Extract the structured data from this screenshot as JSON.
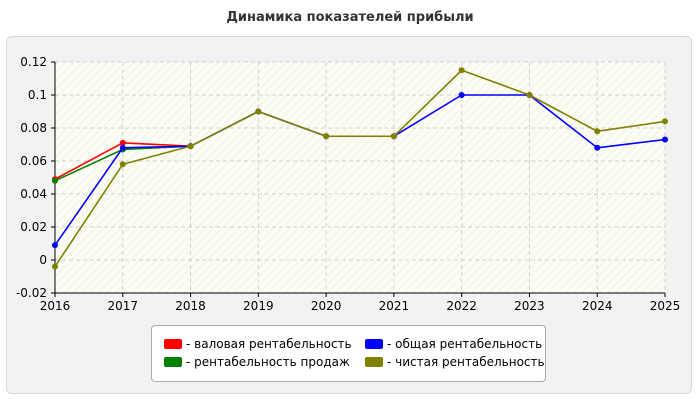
{
  "chart_data": {
    "type": "line",
    "title": "Динамика показателей прибыли",
    "x": [
      "2016",
      "2017",
      "2018",
      "2019",
      "2020",
      "2021",
      "2022",
      "2023",
      "2024",
      "2025"
    ],
    "ylim": [
      -0.02,
      0.12
    ],
    "yticks": [
      "-0.02",
      "0",
      "0.02",
      "0.04",
      "0.06",
      "0.08",
      "0.1",
      "0.12"
    ],
    "grid": true,
    "legend_position": "bottom",
    "series": [
      {
        "name": "- валовая рентабельность",
        "color": "#ff0000",
        "values": [
          0.049,
          0.071,
          0.069,
          null,
          null,
          null,
          null,
          null,
          null,
          null
        ]
      },
      {
        "name": "- рентабельность продаж",
        "color": "#008000",
        "values": [
          0.048,
          0.067,
          0.069,
          null,
          null,
          null,
          null,
          null,
          null,
          null
        ]
      },
      {
        "name": "- общая рентабельность",
        "color": "#0000ff",
        "values": [
          0.009,
          0.068,
          0.069,
          0.09,
          0.075,
          0.075,
          0.1,
          0.1,
          0.068,
          0.073
        ]
      },
      {
        "name": "- чистая рентабельность",
        "color": "#808000",
        "values": [
          -0.004,
          0.058,
          0.069,
          0.09,
          0.075,
          0.075,
          0.115,
          0.1,
          0.078,
          0.084
        ]
      }
    ]
  }
}
